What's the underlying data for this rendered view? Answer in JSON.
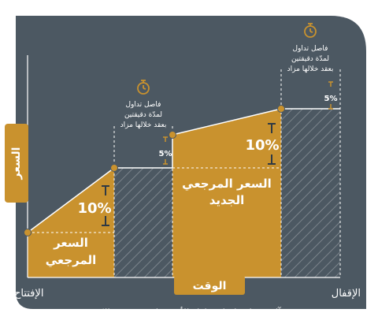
{
  "colors": {
    "background": "#4c5862",
    "gold": "#c9922e",
    "line": "#ffffff",
    "text_light": "#ffffff",
    "text_dark": "#2f3a44"
  },
  "labels": {
    "y_axis": "السعر",
    "x_axis": "الوقت",
    "open": "الإفتتاح",
    "close": "الإقفال",
    "caption": "آلية عمل فاصل تداول الأسهم لدى بورصة الكويت",
    "ref_price_line1": "السعر",
    "ref_price_line2": "المرجعي",
    "new_ref_line1": "السعر المرجعي",
    "new_ref_line2": "الجديد",
    "pct_10_a": "10%",
    "pct_10_b": "10%",
    "pct_5_a": "5%",
    "pct_5_b": "5%"
  },
  "notes": {
    "line1": "فاصل تداول",
    "line2": "لمدّة دقيقتين",
    "line3": "بعقد خلالها مزاد"
  },
  "icons": {
    "timer": "stopwatch-icon",
    "up_arrow": "arrow-up-icon",
    "down_arrow": "arrow-down-icon"
  }
}
